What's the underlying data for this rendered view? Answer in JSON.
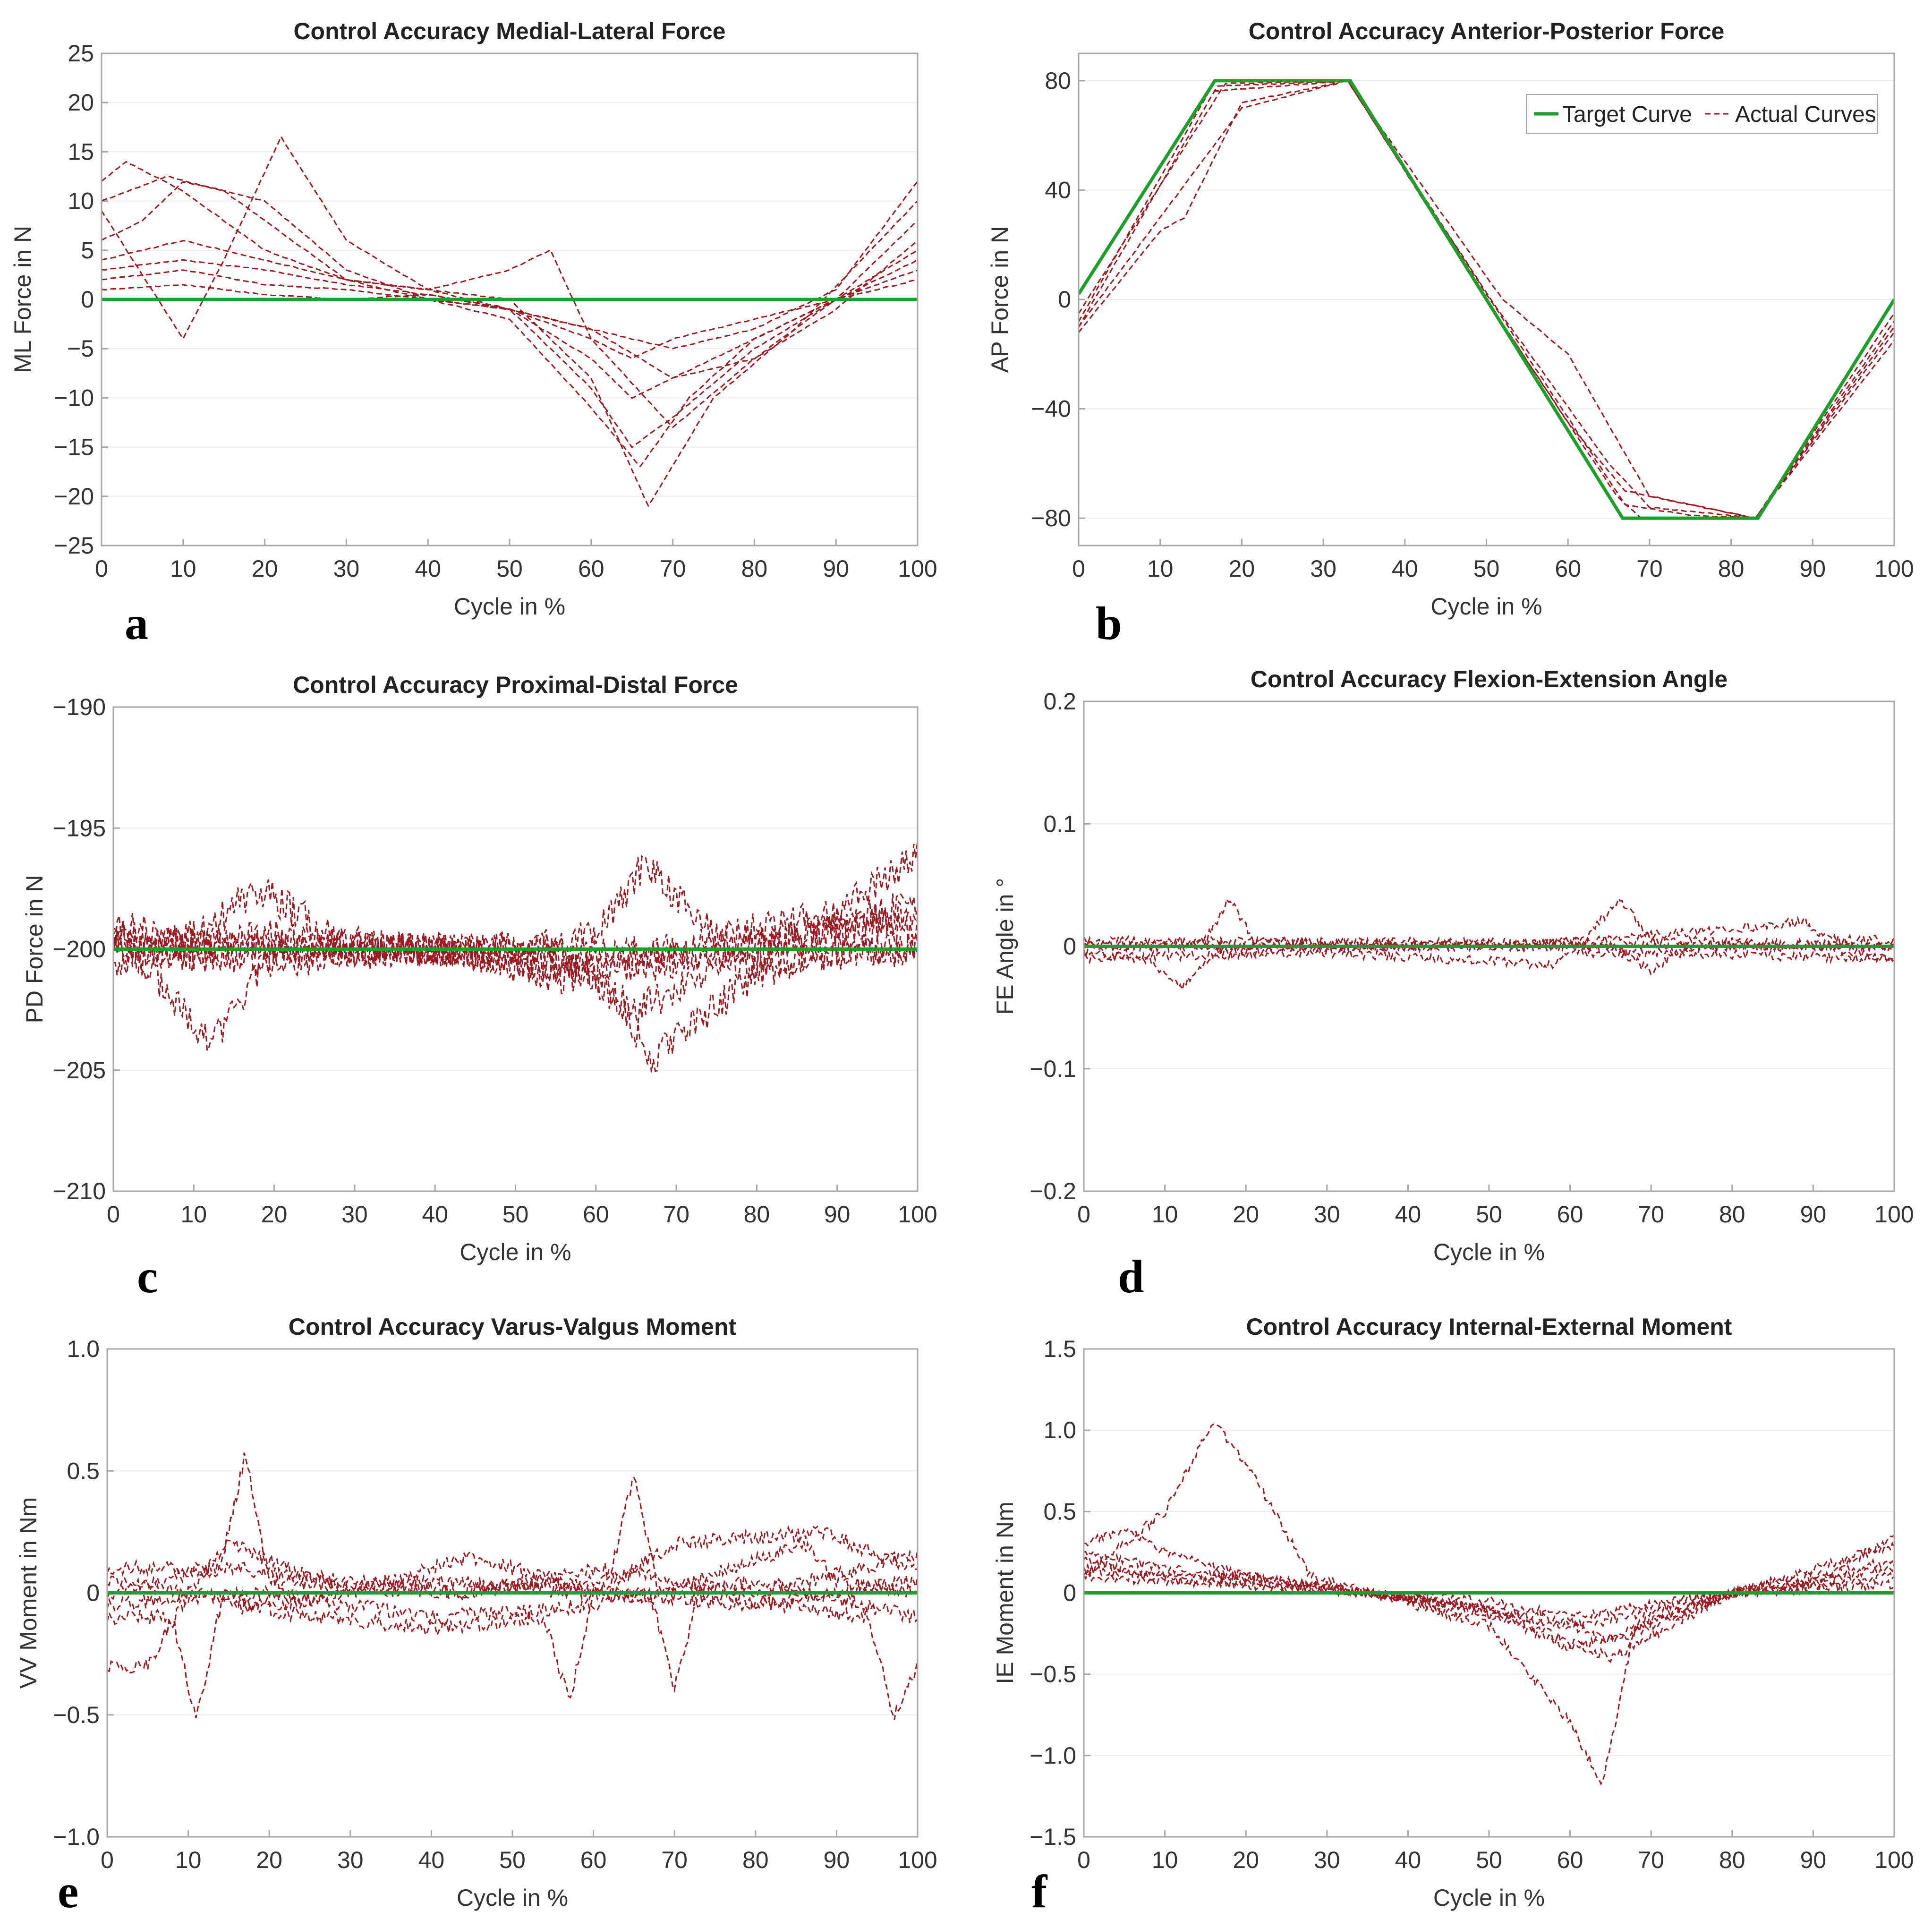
{
  "chart_data": [
    {
      "type": "line",
      "id": "a",
      "title": "Control Accuracy Medial-Lateral Force",
      "xlabel": "Cycle in %",
      "ylabel": "ML Force in N",
      "xlim": [
        0,
        100
      ],
      "ylim": [
        -25,
        25
      ],
      "xticks": [
        0,
        10,
        20,
        30,
        40,
        50,
        60,
        70,
        80,
        90,
        100
      ],
      "yticks": [
        -25,
        -20,
        -15,
        -10,
        -5,
        0,
        5,
        10,
        15,
        20,
        25
      ],
      "ytick_labels": [
        "−25",
        "−20",
        "−15",
        "−10",
        "−5",
        "0",
        "5",
        "10",
        "15",
        "20",
        "25"
      ],
      "panel_label": "a",
      "noise": 0,
      "target": {
        "name": "Target Curve",
        "x": [
          0,
          100
        ],
        "y": [
          0,
          0
        ]
      },
      "series": [
        {
          "name": "Actual Curves",
          "x": [
            0,
            3,
            10,
            20,
            30,
            40,
            50,
            60,
            70,
            80,
            90,
            100
          ],
          "y": [
            12,
            14,
            11,
            5,
            2,
            0,
            -1,
            -3,
            -5,
            -3,
            1,
            12
          ]
        },
        {
          "x": [
            0,
            5,
            10,
            15,
            20,
            30,
            40,
            50,
            60,
            67,
            75,
            85,
            100
          ],
          "y": [
            6,
            8,
            12,
            11,
            8,
            2,
            1,
            0,
            -8,
            -21,
            -10,
            -3,
            10
          ]
        },
        {
          "x": [
            0,
            10,
            15,
            22,
            30,
            40,
            50,
            55,
            60,
            70,
            80,
            90,
            100
          ],
          "y": [
            9,
            -4,
            4,
            16.5,
            6,
            1,
            3,
            5,
            -4,
            -13,
            -6,
            0,
            5
          ]
        },
        {
          "x": [
            0,
            10,
            20,
            30,
            40,
            50,
            60,
            65,
            70,
            80,
            90,
            100
          ],
          "y": [
            4,
            6,
            4,
            2,
            1,
            -1,
            -9,
            -15,
            -12,
            -5,
            0,
            4
          ]
        },
        {
          "x": [
            0,
            10,
            20,
            30,
            40,
            50,
            60,
            65,
            70,
            80,
            90,
            100
          ],
          "y": [
            3,
            4,
            3,
            1.5,
            0.5,
            -1,
            -6,
            -10,
            -8,
            -4,
            0,
            3
          ]
        },
        {
          "x": [
            0,
            10,
            20,
            30,
            40,
            50,
            60,
            70,
            80,
            90,
            100
          ],
          "y": [
            2,
            3,
            1.5,
            1,
            0,
            -1,
            -3,
            -8,
            -6,
            -1,
            6
          ]
        },
        {
          "x": [
            0,
            8,
            20,
            30,
            40,
            50,
            60,
            66,
            72,
            80,
            90,
            100
          ],
          "y": [
            10,
            12.5,
            10,
            3,
            0,
            -2,
            -11,
            -17,
            -10,
            -4,
            0,
            8
          ]
        },
        {
          "x": [
            0,
            10,
            20,
            30,
            40,
            50,
            60,
            65,
            70,
            80,
            90,
            100
          ],
          "y": [
            1,
            1.5,
            0.5,
            0,
            0.5,
            -1,
            -4,
            -6,
            -4,
            -2,
            0,
            2
          ]
        }
      ]
    },
    {
      "type": "line",
      "id": "b",
      "title": "Control Accuracy Anterior-Posterior Force",
      "xlabel": "Cycle in %",
      "ylabel": "AP Force in N",
      "xlim": [
        0,
        100
      ],
      "ylim": [
        -90,
        90
      ],
      "xticks": [
        0,
        10,
        20,
        30,
        40,
        50,
        60,
        70,
        80,
        90,
        100
      ],
      "yticks": [
        -80,
        -40,
        0,
        40,
        80
      ],
      "ytick_labels": [
        "−80",
        "−40",
        "0",
        "40",
        "80"
      ],
      "panel_label": "b",
      "noise": 0,
      "legend": {
        "target_label": "Target Curve",
        "actual_label": "Actual Curves",
        "position": "top-right"
      },
      "target": {
        "name": "Target Curve",
        "x": [
          0,
          16.7,
          33.3,
          66.7,
          83.3,
          100
        ],
        "y": [
          2,
          80,
          80,
          -80,
          -80,
          0
        ]
      },
      "series": [
        {
          "name": "Actual Curves",
          "x": [
            0,
            17,
            33,
            50,
            66,
            69,
            83,
            100
          ],
          "y": [
            -10,
            78,
            80,
            0,
            -72,
            -80,
            -80,
            -8
          ]
        },
        {
          "x": [
            0,
            10,
            13,
            20,
            33,
            52,
            60,
            70,
            83,
            100
          ],
          "y": [
            -12,
            25,
            30,
            72,
            80,
            0,
            -20,
            -72,
            -80,
            -15
          ]
        },
        {
          "x": [
            0,
            18,
            33,
            50,
            60,
            67,
            83,
            100
          ],
          "y": [
            -5,
            79,
            80,
            0,
            -45,
            -70,
            -80,
            -5
          ]
        },
        {
          "x": [
            0,
            16,
            33,
            51,
            65,
            70,
            83,
            100
          ],
          "y": [
            -8,
            76,
            80,
            -2,
            -60,
            -76,
            -80,
            -10
          ]
        },
        {
          "x": [
            0,
            20,
            33,
            50,
            67,
            75,
            83,
            100
          ],
          "y": [
            -10,
            70,
            80,
            2,
            -75,
            -79,
            -80,
            -12
          ]
        }
      ]
    },
    {
      "type": "line",
      "id": "c",
      "title": "Control Accuracy Proximal-Distal Force",
      "xlabel": "Cycle in %",
      "ylabel": "PD Force in N",
      "xlim": [
        0,
        100
      ],
      "ylim": [
        -210,
        -190
      ],
      "xticks": [
        0,
        10,
        20,
        30,
        40,
        50,
        60,
        70,
        80,
        90,
        100
      ],
      "yticks": [
        -210,
        -205,
        -200,
        -195,
        -190
      ],
      "ytick_labels": [
        "−210",
        "−205",
        "−200",
        "−195",
        "−190"
      ],
      "panel_label": "c",
      "noise": 0.7,
      "target": {
        "name": "Target Curve",
        "x": [
          0,
          100
        ],
        "y": [
          -200,
          -200
        ]
      },
      "series": [
        {
          "name": "Actual Curves",
          "x": [
            0,
            5,
            12,
            20,
            40,
            60,
            67,
            80,
            90,
            100
          ],
          "y": [
            -199,
            -201,
            -204,
            -200,
            -200,
            -201,
            -204.5,
            -201,
            -200,
            -200
          ]
        },
        {
          "x": [
            0,
            10,
            18,
            30,
            50,
            60,
            66,
            75,
            90,
            100
          ],
          "y": [
            -199,
            -199.5,
            -197.5,
            -200,
            -200,
            -199.5,
            -196.5,
            -199.5,
            -198.5,
            -196
          ]
        },
        {
          "x": [
            0,
            20,
            40,
            60,
            65,
            80,
            100
          ],
          "y": [
            -200,
            -200.5,
            -200,
            -201.5,
            -202.5,
            -200,
            -198.5
          ]
        },
        {
          "x": [
            0,
            20,
            40,
            60,
            80,
            100
          ],
          "y": [
            -199.5,
            -200,
            -200,
            -200.5,
            -199.5,
            -199
          ]
        },
        {
          "x": [
            0,
            20,
            40,
            60,
            80,
            90,
            100
          ],
          "y": [
            -200.5,
            -200,
            -200,
            -201,
            -200,
            -199,
            -198
          ]
        },
        {
          "x": [
            0,
            20,
            40,
            60,
            80,
            100
          ],
          "y": [
            -200,
            -199.5,
            -200,
            -200,
            -200.5,
            -200
          ]
        }
      ]
    },
    {
      "type": "line",
      "id": "d",
      "title": "Control Accuracy Flexion-Extension Angle",
      "xlabel": "Cycle in %",
      "ylabel": "FE Angle in °",
      "xlim": [
        0,
        100
      ],
      "ylim": [
        -0.2,
        0.2
      ],
      "xticks": [
        0,
        10,
        20,
        30,
        40,
        50,
        60,
        70,
        80,
        90,
        100
      ],
      "yticks": [
        -0.2,
        -0.1,
        0,
        0.1,
        0.2
      ],
      "ytick_labels": [
        "−0.2",
        "−0.1",
        "0",
        "0.1",
        "0.2"
      ],
      "panel_label": "d",
      "noise": 0.004,
      "target": {
        "name": "Target Curve",
        "x": [
          0,
          100
        ],
        "y": [
          0,
          0
        ]
      },
      "series": [
        {
          "name": "Actual Curves",
          "x": [
            0,
            12,
            15,
            18,
            21,
            40,
            62,
            66,
            70,
            100
          ],
          "y": [
            0,
            0,
            0.005,
            0.04,
            0.005,
            0,
            0.005,
            0.04,
            0.005,
            0
          ]
        },
        {
          "x": [
            0,
            8,
            12,
            16,
            30,
            65,
            70,
            74,
            90,
            100
          ],
          "y": [
            -0.005,
            -0.01,
            -0.035,
            -0.005,
            0,
            0,
            -0.02,
            0,
            0,
            -0.01
          ]
        },
        {
          "x": [
            0,
            30,
            60,
            89,
            92,
            100
          ],
          "y": [
            0.005,
            0.003,
            0.003,
            0.02,
            0.005,
            0.005
          ]
        },
        {
          "x": [
            0,
            30,
            58,
            60,
            70,
            100
          ],
          "y": [
            -0.01,
            -0.005,
            -0.015,
            -0.005,
            -0.005,
            -0.01
          ]
        },
        {
          "x": [
            0,
            50,
            100
          ],
          "y": [
            0,
            0,
            0
          ]
        }
      ]
    },
    {
      "type": "line",
      "id": "e",
      "title": "Control Accuracy Varus-Valgus Moment",
      "xlabel": "Cycle in %",
      "ylabel": "VV Moment in Nm",
      "xlim": [
        0,
        100
      ],
      "ylim": [
        -1,
        1
      ],
      "xticks": [
        0,
        10,
        20,
        30,
        40,
        50,
        60,
        70,
        80,
        90,
        100
      ],
      "yticks": [
        -1,
        -0.5,
        0,
        0.5,
        1
      ],
      "ytick_labels": [
        "−1.0",
        "−0.5",
        "0",
        "0.5",
        "1.0"
      ],
      "panel_label": "e",
      "noise": 0.03,
      "target": {
        "name": "Target Curve",
        "x": [
          0,
          100
        ],
        "y": [
          0,
          0
        ]
      },
      "series": [
        {
          "name": "Actual Curves",
          "x": [
            0,
            14,
            17,
            20,
            40,
            62,
            65,
            68,
            86,
            90,
            100
          ],
          "y": [
            0,
            0.1,
            0.57,
            0.05,
            0,
            0.05,
            0.5,
            0,
            0.2,
            0.05,
            0
          ]
        },
        {
          "x": [
            0,
            8,
            11,
            14,
            40,
            54,
            57,
            60,
            67,
            70,
            73,
            94,
            97,
            100
          ],
          "y": [
            -0.1,
            -0.1,
            -0.52,
            -0.05,
            -0.15,
            -0.1,
            -0.45,
            0,
            0,
            -0.4,
            0,
            -0.1,
            -0.5,
            -0.3
          ]
        },
        {
          "x": [
            0,
            5,
            10,
            15,
            30,
            45,
            60,
            70,
            88,
            100
          ],
          "y": [
            -0.3,
            -0.3,
            0,
            0.2,
            0,
            0.15,
            0,
            0.2,
            0.25,
            0.1
          ]
        },
        {
          "x": [
            0,
            15,
            30,
            45,
            60,
            80,
            100
          ],
          "y": [
            0.1,
            0.1,
            0.05,
            0,
            0.1,
            0,
            0.15
          ]
        },
        {
          "x": [
            0,
            20,
            40,
            60,
            80,
            100
          ],
          "y": [
            -0.05,
            0,
            -0.1,
            -0.05,
            0.05,
            -0.1
          ]
        },
        {
          "x": [
            0,
            20,
            40,
            60,
            80,
            100
          ],
          "y": [
            0.05,
            -0.05,
            0.05,
            0,
            -0.05,
            0.05
          ]
        }
      ]
    },
    {
      "type": "line",
      "id": "f",
      "title": "Control Accuracy Internal-External Moment",
      "xlabel": "Cycle in %",
      "ylabel": "IE Moment in Nm",
      "xlim": [
        0,
        100
      ],
      "ylim": [
        -1.5,
        1.5
      ],
      "xticks": [
        0,
        10,
        20,
        30,
        40,
        50,
        60,
        70,
        80,
        90,
        100
      ],
      "yticks": [
        -1.5,
        -1,
        -0.5,
        0,
        0.5,
        1,
        1.5
      ],
      "ytick_labels": [
        "−1.5",
        "−1.0",
        "−0.5",
        "0",
        "0.5",
        "1.0",
        "1.5"
      ],
      "panel_label": "f",
      "noise": 0.03,
      "target": {
        "name": "Target Curve",
        "x": [
          0,
          100
        ],
        "y": [
          0,
          0
        ]
      },
      "series": [
        {
          "name": "Actual Curves",
          "x": [
            0,
            10,
            16,
            20,
            28,
            35,
            50,
            60,
            64,
            68,
            80,
            100
          ],
          "y": [
            0.1,
            0.5,
            1.05,
            0.8,
            0.1,
            0,
            -0.2,
            -0.8,
            -1.18,
            -0.2,
            0,
            0.3
          ]
        },
        {
          "x": [
            0,
            5,
            10,
            20,
            35,
            50,
            60,
            65,
            80,
            90,
            100
          ],
          "y": [
            0.3,
            0.4,
            0.25,
            0.1,
            0,
            -0.1,
            -0.3,
            -0.4,
            0,
            0.05,
            0.35
          ]
        },
        {
          "x": [
            0,
            10,
            20,
            35,
            50,
            60,
            65,
            80,
            90,
            100
          ],
          "y": [
            0.2,
            0.1,
            0.1,
            0,
            -0.15,
            -0.2,
            -0.3,
            0,
            0.1,
            0.2
          ]
        },
        {
          "x": [
            0,
            10,
            20,
            35,
            50,
            62,
            80,
            100
          ],
          "y": [
            0.15,
            0.1,
            0.05,
            0,
            -0.1,
            -0.2,
            0,
            0.1
          ]
        },
        {
          "x": [
            0,
            10,
            20,
            35,
            50,
            60,
            66,
            80,
            100
          ],
          "y": [
            0.25,
            0.15,
            0.1,
            0,
            -0.1,
            -0.35,
            -0.25,
            0,
            0.15
          ]
        },
        {
          "x": [
            0,
            20,
            35,
            50,
            60,
            80,
            100
          ],
          "y": [
            0.1,
            0.05,
            0,
            -0.05,
            -0.15,
            0,
            0.05
          ]
        }
      ]
    }
  ]
}
